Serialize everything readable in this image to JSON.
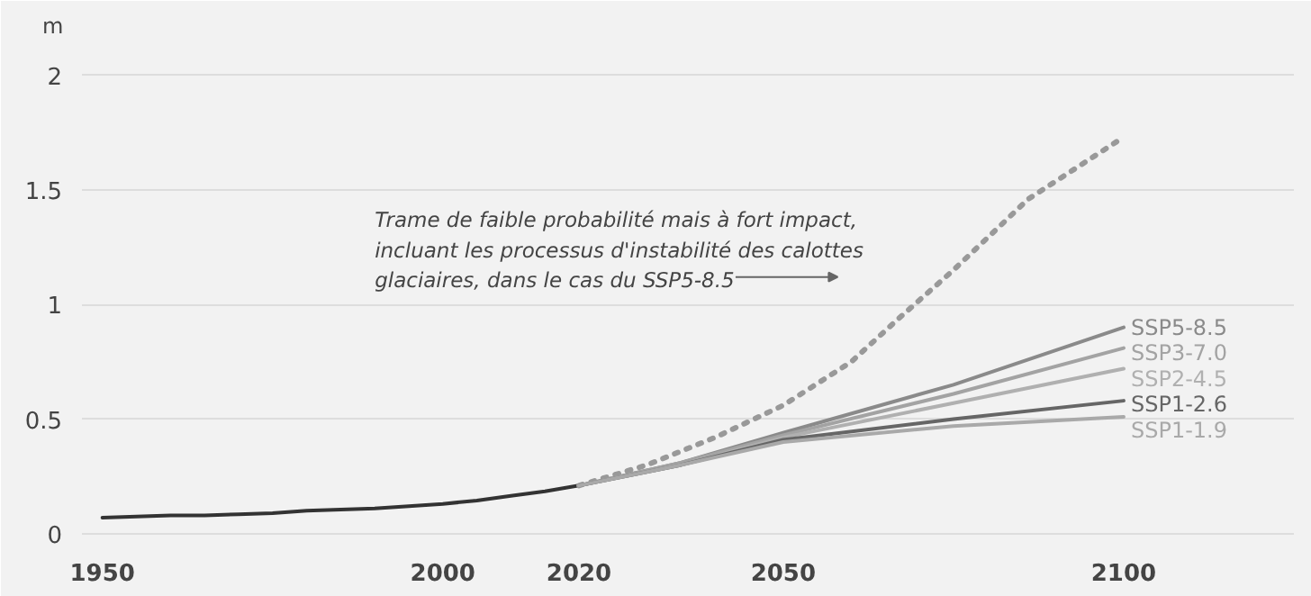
{
  "chart_data": {
    "type": "line",
    "ylabel": "m",
    "xlim": [
      1947,
      2125
    ],
    "ylim": [
      -0.04,
      2.12
    ],
    "xticks": [
      1950,
      2000,
      2020,
      2050,
      2100
    ],
    "yticks": [
      0,
      0.5,
      1,
      1.5,
      2
    ],
    "grid": "y",
    "series": [
      {
        "color": "#333333",
        "x": [
          1950,
          1955,
          1960,
          1965,
          1970,
          1975,
          1980,
          1985,
          1990,
          1995,
          2000,
          2005,
          2010,
          2015,
          2020
        ],
        "values": [
          0.07,
          0.075,
          0.08,
          0.08,
          0.085,
          0.09,
          0.1,
          0.105,
          0.11,
          0.12,
          0.13,
          0.145,
          0.165,
          0.185,
          0.21
        ]
      },
      {
        "line_style": "dotted",
        "color": "#999999",
        "x": [
          2020,
          2030,
          2040,
          2050,
          2060,
          2067,
          2075,
          2086,
          2100
        ],
        "values": [
          0.21,
          0.3,
          0.42,
          0.56,
          0.75,
          0.94,
          1.15,
          1.46,
          1.73
        ]
      },
      {
        "name": "SSP5-8.5",
        "color": "#8a8a8a",
        "x": [
          2020,
          2035,
          2050,
          2075,
          2100
        ],
        "values": [
          0.21,
          0.31,
          0.44,
          0.65,
          0.9
        ]
      },
      {
        "name": "SSP3-7.0",
        "color": "#a3a3a3",
        "x": [
          2020,
          2035,
          2050,
          2075,
          2100
        ],
        "values": [
          0.21,
          0.31,
          0.43,
          0.61,
          0.81
        ]
      },
      {
        "name": "SSP2-4.5",
        "color": "#b0b0b0",
        "x": [
          2020,
          2035,
          2050,
          2075,
          2100
        ],
        "values": [
          0.21,
          0.3,
          0.42,
          0.57,
          0.72
        ]
      },
      {
        "name": "SSP1-2.6",
        "color": "#666666",
        "x": [
          2020,
          2035,
          2050,
          2075,
          2100
        ],
        "values": [
          0.21,
          0.3,
          0.41,
          0.5,
          0.58
        ]
      },
      {
        "name": "SSP1-1.9",
        "color": "#a9a9a9",
        "x": [
          2020,
          2035,
          2050,
          2075,
          2100
        ],
        "values": [
          0.21,
          0.3,
          0.4,
          0.47,
          0.51
        ]
      }
    ],
    "annotations": [
      "Trame de faible probabilité mais à fort impact,\nincluant les processus d'instabilité des calottes\nglaciaires, dans le cas du SSP5-8.5"
    ]
  }
}
